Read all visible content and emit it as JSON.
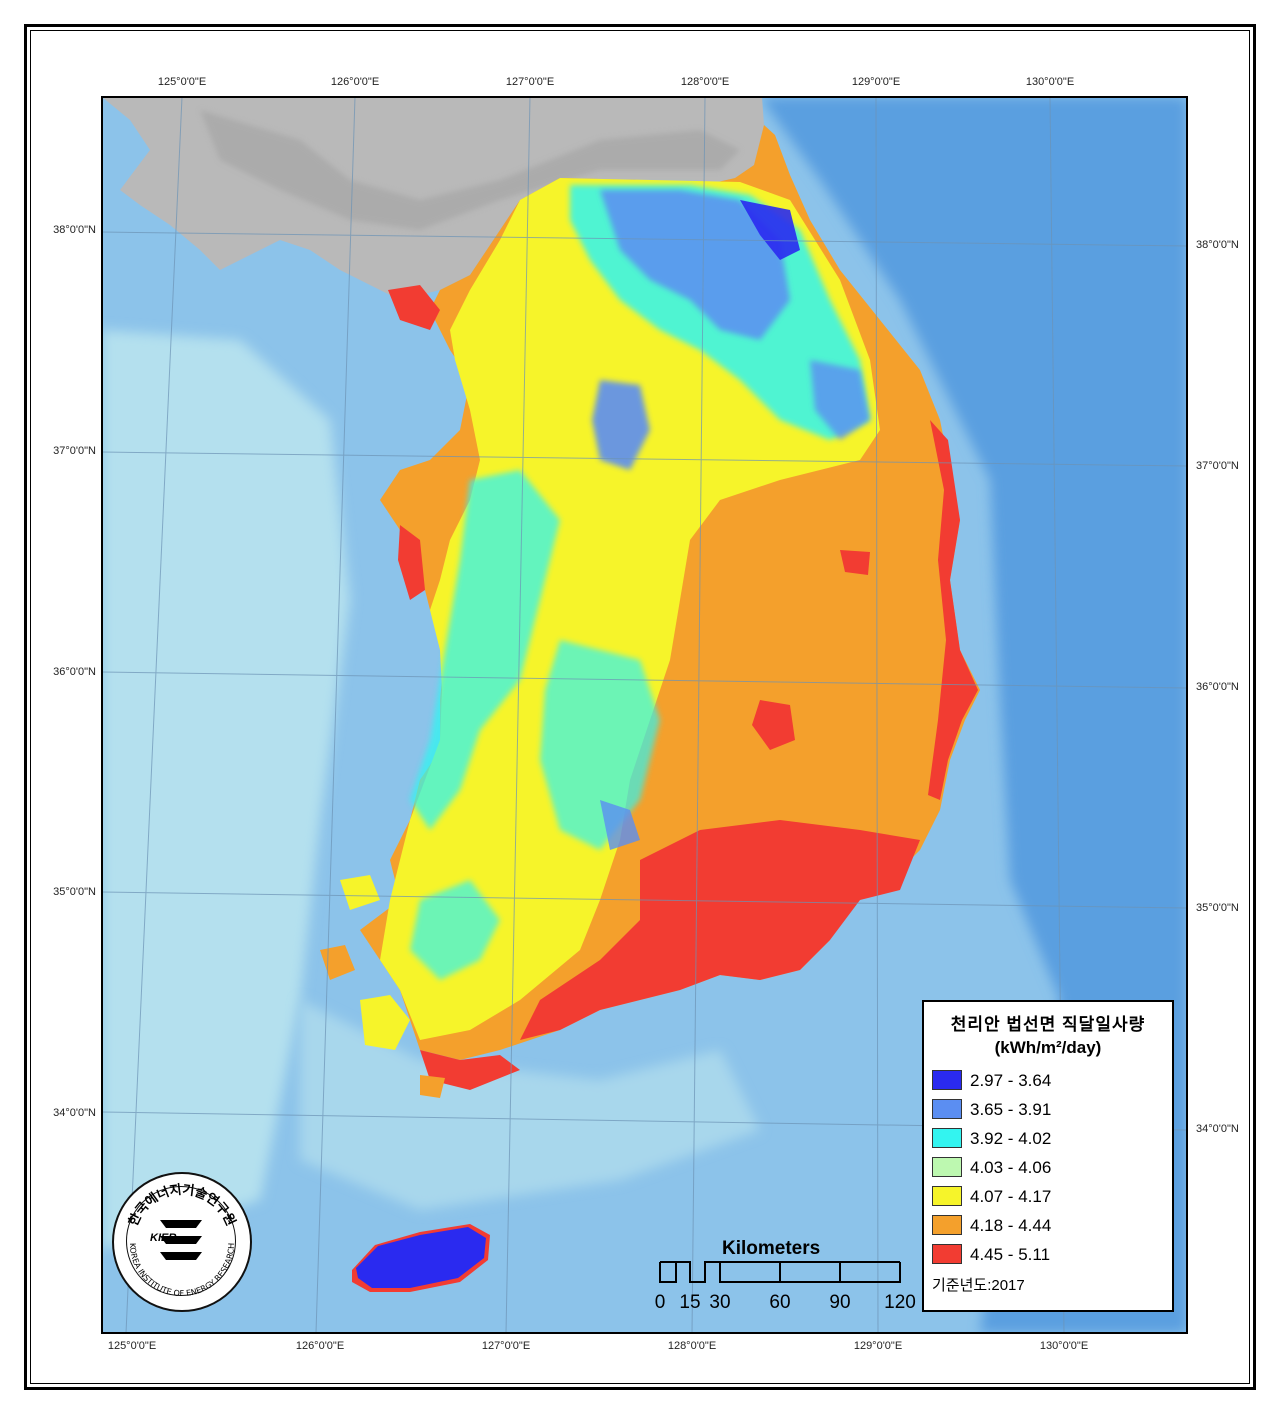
{
  "map": {
    "legend": {
      "title": "천리안 법선면 직달일사량",
      "unit": "(kWh/m²/day)",
      "classes": [
        {
          "label": "2.97  -  3.64",
          "color": "#2a2af0"
        },
        {
          "label": "3.65  -  3.91",
          "color": "#5b8ef2"
        },
        {
          "label": "3.92  -  4.02",
          "color": "#33f4f0"
        },
        {
          "label": "4.03  -  4.06",
          "color": "#bdf8b0"
        },
        {
          "label": "4.07  -  4.17",
          "color": "#f6f42a"
        },
        {
          "label": "4.18  -  4.44",
          "color": "#f4a02c"
        },
        {
          "label": "4.45  -  5.11",
          "color": "#f23c32"
        }
      ],
      "base_year": "기준년도:2017"
    },
    "scale_bar": {
      "title": "Kilometers",
      "labels": [
        "0",
        "15",
        "30",
        "60",
        "90",
        "120"
      ]
    },
    "graticule": {
      "top_lon": [
        "125°0'0\"E",
        "126°0'0\"E",
        "127°0'0\"E",
        "128°0'0\"E",
        "129°0'0\"E",
        "130°0'0\"E"
      ],
      "bottom_lon": [
        "125°0'0\"E",
        "126°0'0\"E",
        "127°0'0\"E",
        "128°0'0\"E",
        "129°0'0\"E",
        "130°0'0\"E"
      ],
      "left_lat": [
        "38°0'0\"N",
        "37°0'0\"N",
        "36°0'0\"N",
        "35°0'0\"N",
        "34°0'0\"N"
      ],
      "right_lat": [
        "38°0'0\"N",
        "37°0'0\"N",
        "36°0'0\"N",
        "35°0'0\"N",
        "34°0'0\"N"
      ]
    },
    "logo": {
      "text": "KIER",
      "ring_text_korean": "한국에너지기술연구원",
      "ring_text_english": "KOREA INSTITUTE OF ENERGY RESEARCH"
    },
    "colors": {
      "sea_deep": "#5a9fe0",
      "sea_mid": "#8cc3ea",
      "sea_shallow": "#b4e0ee",
      "north_land": "#b9b9b9"
    }
  }
}
